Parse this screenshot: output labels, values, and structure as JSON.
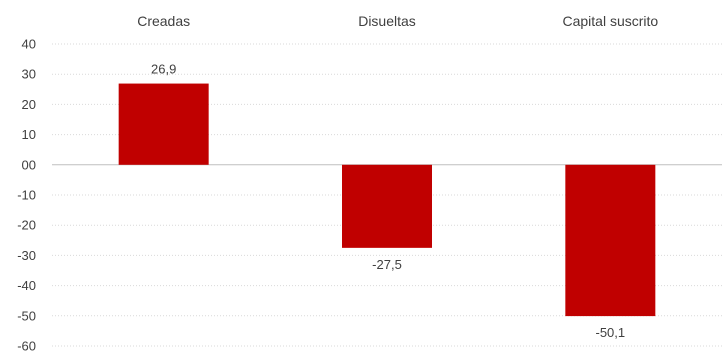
{
  "chart_data": {
    "type": "bar",
    "categories": [
      "Creadas",
      "Disueltas",
      "Capital suscrito"
    ],
    "values": [
      26.9,
      -27.5,
      -50.1
    ],
    "value_labels": [
      "26,9",
      "-27,5",
      "-50,1"
    ],
    "title": "",
    "xlabel": "",
    "ylabel": "",
    "ylim": [
      -60,
      40
    ],
    "yticks": [
      40,
      30,
      20,
      10,
      0,
      -10,
      -20,
      -30,
      -40,
      -50,
      -60
    ],
    "ytick_labels": [
      "40",
      "30",
      "20",
      "10",
      "00",
      "-10",
      "-20",
      "-30",
      "-40",
      "-50",
      "-60"
    ],
    "category_axis_position": "top",
    "grid": true,
    "legend": "none",
    "bar_color": "#c00000"
  }
}
